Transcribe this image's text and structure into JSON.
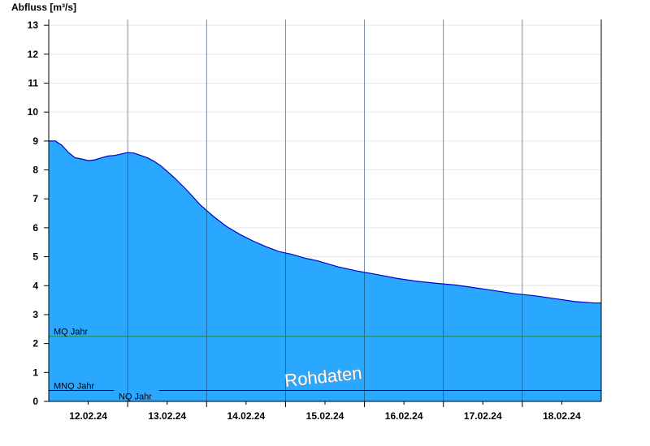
{
  "chart_data": {
    "type": "area",
    "ylabel": "Abfluss [m³/s]",
    "xlabel": "",
    "ylim": [
      0,
      13.2
    ],
    "y_ticks": [
      0,
      1,
      2,
      3,
      4,
      5,
      6,
      7,
      8,
      9,
      10,
      11,
      12,
      13
    ],
    "x_range": [
      "2024-02-11 12:00",
      "2024-02-18 12:00"
    ],
    "x_tick_labels": [
      "12.02.24",
      "13.02.24",
      "14.02.24",
      "15.02.24",
      "16.02.24",
      "17.02.24",
      "18.02.24"
    ],
    "grid": true,
    "fill_color": "#2aa7ff",
    "line_color": "#0000cc",
    "series": [
      {
        "x": [
          "2024-02-11 12:00",
          "2024-02-11 14:00",
          "2024-02-11 16:00",
          "2024-02-11 18:00",
          "2024-02-11 20:00",
          "2024-02-11 22:00",
          "2024-02-12 00:00",
          "2024-02-12 02:00",
          "2024-02-12 04:00",
          "2024-02-12 06:00",
          "2024-02-12 08:00",
          "2024-02-12 10:00",
          "2024-02-12 12:00",
          "2024-02-12 14:00",
          "2024-02-12 16:00",
          "2024-02-12 18:00",
          "2024-02-12 20:00",
          "2024-02-12 22:00",
          "2024-02-13 00:00",
          "2024-02-13 02:00",
          "2024-02-13 06:00",
          "2024-02-13 10:00",
          "2024-02-13 14:00",
          "2024-02-13 18:00",
          "2024-02-13 22:00",
          "2024-02-14 02:00",
          "2024-02-14 06:00",
          "2024-02-14 10:00",
          "2024-02-14 14:00",
          "2024-02-14 18:00",
          "2024-02-14 22:00",
          "2024-02-15 04:00",
          "2024-02-15 10:00",
          "2024-02-15 16:00",
          "2024-02-15 22:00",
          "2024-02-16 04:00",
          "2024-02-16 10:00",
          "2024-02-16 16:00",
          "2024-02-16 22:00",
          "2024-02-17 04:00",
          "2024-02-17 10:00",
          "2024-02-17 16:00",
          "2024-02-17 22:00",
          "2024-02-18 04:00",
          "2024-02-18 10:00",
          "2024-02-18 12:00"
        ],
        "y": [
          9.0,
          9.0,
          8.85,
          8.6,
          8.42,
          8.38,
          8.32,
          8.35,
          8.42,
          8.48,
          8.5,
          8.55,
          8.6,
          8.58,
          8.5,
          8.42,
          8.3,
          8.15,
          7.95,
          7.75,
          7.3,
          6.8,
          6.4,
          6.05,
          5.78,
          5.55,
          5.35,
          5.18,
          5.08,
          4.95,
          4.85,
          4.65,
          4.5,
          4.38,
          4.25,
          4.15,
          4.08,
          4.02,
          3.92,
          3.82,
          3.72,
          3.65,
          3.55,
          3.45,
          3.4,
          3.4
        ]
      }
    ],
    "reference_lines": [
      {
        "label": "MQ Jahr",
        "value": 2.25,
        "color": "#1e8c3c"
      },
      {
        "label": "MNQ Jahr",
        "value": 0.38,
        "color": "#000000"
      },
      {
        "label": "NQ Jahr",
        "value": 0.38,
        "color": "#000000"
      }
    ],
    "annotations": [
      {
        "text": "Rohdaten"
      }
    ]
  }
}
